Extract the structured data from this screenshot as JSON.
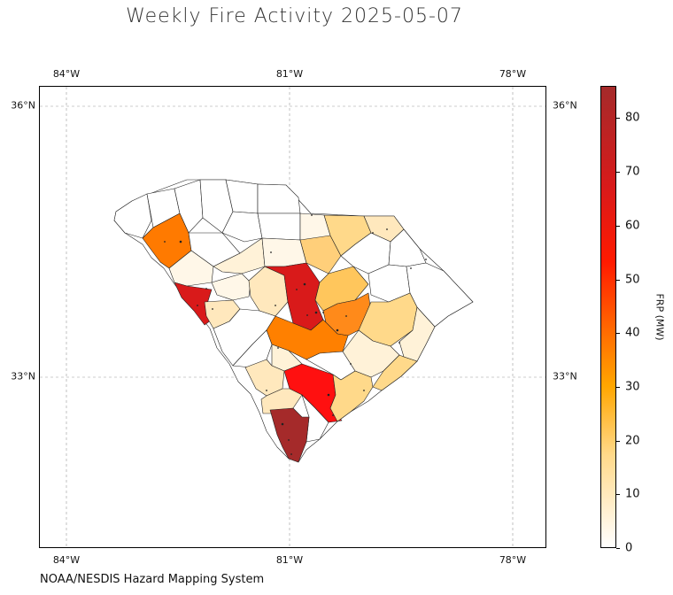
{
  "title": "Weekly Fire Activity 2025-05-07",
  "source": "NOAA/NESDIS Hazard Mapping System",
  "map": {
    "lon_ticks": [
      "84°W",
      "81°W",
      "78°W"
    ],
    "lat_ticks": [
      "36°N",
      "33°N"
    ],
    "projection": "PlateCarree",
    "gridlines": true
  },
  "colorbar": {
    "label": "FRP (MW)",
    "ticks": [
      "0",
      "10",
      "20",
      "30",
      "40",
      "50",
      "60",
      "70",
      "80"
    ],
    "min": 0,
    "max": 86,
    "colors": [
      "#ffffff",
      "#ffd98a",
      "#ffa600",
      "#ff6a00",
      "#ff1a00",
      "#d91a1a",
      "#a52a2a"
    ]
  },
  "chart_data": {
    "type": "choropleth",
    "region": "South Carolina counties",
    "value_name": "FRP (MW)",
    "highlighted_counties_frp": [
      {
        "area": "southern coastal county",
        "frp": 86
      },
      {
        "area": "central midlands county",
        "frp": 75
      },
      {
        "area": "western county on state line",
        "frp": 75
      },
      {
        "area": "south-central lowcountry county",
        "frp": 62
      },
      {
        "area": "central-eastern county",
        "frp": 40
      },
      {
        "area": "central band",
        "frp": 38
      },
      {
        "area": "upstate county",
        "frp": 38
      },
      {
        "area": "northeast/pee dee counties",
        "frp": 13
      },
      {
        "area": "central counties",
        "frp": 20
      }
    ]
  }
}
